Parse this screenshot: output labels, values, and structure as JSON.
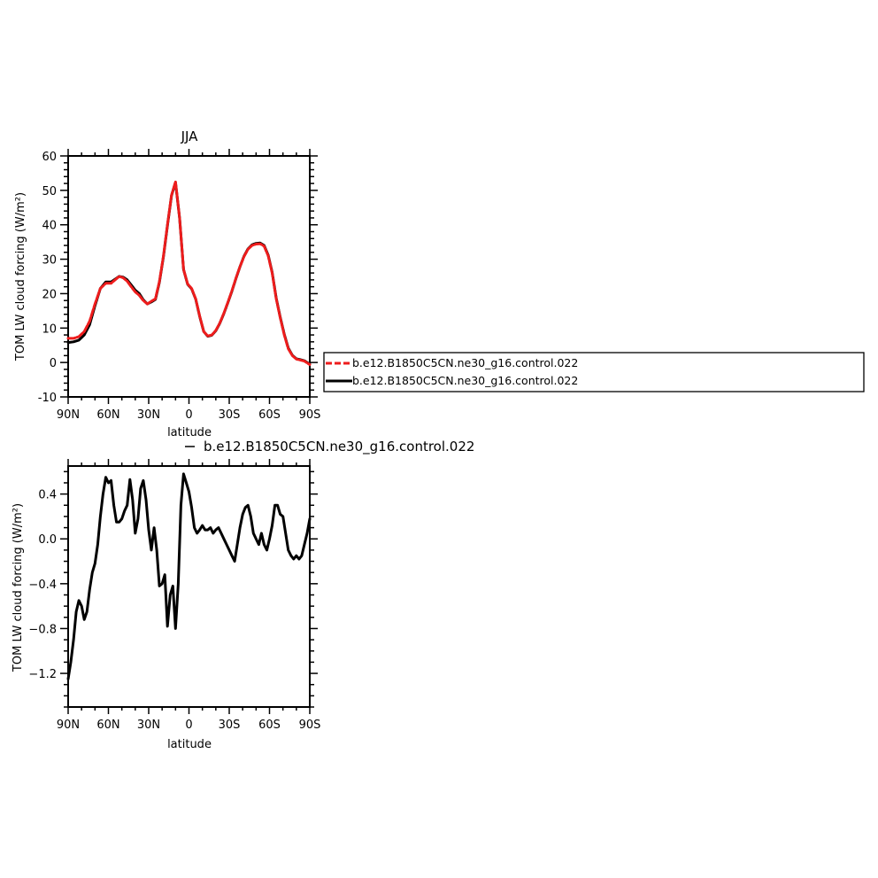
{
  "chart_data": [
    {
      "type": "line",
      "title": "JJA",
      "xlabel": "latitude",
      "ylabel": "TOM LW cloud forcing (W/m²)",
      "xlim": [
        90,
        -90
      ],
      "ylim": [
        -10,
        60
      ],
      "yticks": [
        -10,
        0,
        10,
        20,
        30,
        40,
        50,
        60
      ],
      "xticks": [
        {
          "value": 90,
          "label": "90N"
        },
        {
          "value": 60,
          "label": "60N"
        },
        {
          "value": 30,
          "label": "30N"
        },
        {
          "value": 0,
          "label": "0"
        },
        {
          "value": -30,
          "label": "30S"
        },
        {
          "value": -60,
          "label": "60S"
        },
        {
          "value": -90,
          "label": "90S"
        }
      ],
      "legend_position": "right",
      "series": [
        {
          "name": "b.e12.B1850C5CN.ne30_g16.control.022",
          "color": "#ee1c1c",
          "dash": "dashed",
          "x": [
            90,
            86,
            82,
            78,
            74,
            70,
            66,
            62,
            58,
            55,
            52,
            49,
            46,
            43,
            40,
            37,
            34,
            31,
            28,
            25,
            22,
            19,
            16,
            13,
            10,
            7,
            4,
            1,
            -2,
            -5,
            -8,
            -11,
            -14,
            -17,
            -20,
            -23,
            -26,
            -29,
            -32,
            -35,
            -38,
            -41,
            -44,
            -47,
            -50,
            -53,
            -56,
            -59,
            -62,
            -65,
            -68,
            -71,
            -74,
            -77,
            -80,
            -83,
            -86,
            -90
          ],
          "y": [
            7,
            7,
            7.5,
            9,
            12,
            17,
            21.5,
            23,
            23,
            24,
            25,
            24.6,
            23.6,
            22,
            20.5,
            19.5,
            18,
            17,
            17.8,
            18.5,
            23.5,
            31,
            40,
            48.6,
            52.5,
            42,
            27,
            22.8,
            21.5,
            18.5,
            13.5,
            9,
            7.7,
            8,
            9.3,
            11.5,
            14.3,
            17.5,
            20.8,
            24.5,
            27.8,
            30.8,
            32.9,
            34,
            34.4,
            34.5,
            33.8,
            31,
            26,
            18.5,
            13,
            8,
            4,
            2,
            1,
            0.7,
            0.4,
            -0.6
          ]
        },
        {
          "name": "b.e12.B1850C5CN.ne30_g16.control.022",
          "color": "#000000",
          "dash": "solid",
          "x": [
            90,
            86,
            82,
            78,
            74,
            70,
            66,
            62,
            58,
            55,
            52,
            49,
            46,
            43,
            40,
            37,
            34,
            31,
            28,
            25,
            22,
            19,
            16,
            13,
            10,
            7,
            4,
            1,
            -2,
            -5,
            -8,
            -11,
            -14,
            -17,
            -20,
            -23,
            -26,
            -29,
            -32,
            -35,
            -38,
            -41,
            -44,
            -47,
            -50,
            -53,
            -56,
            -59,
            -62,
            -65,
            -68,
            -71,
            -74,
            -77,
            -80,
            -83,
            -86,
            -90
          ],
          "y": [
            5.8,
            6,
            6.5,
            8,
            11,
            16.5,
            21.5,
            23.4,
            23.4,
            24.2,
            25,
            24.8,
            24,
            22.5,
            21,
            20,
            18.2,
            17,
            17.6,
            18.3,
            23.3,
            30.8,
            39.8,
            48.5,
            52.3,
            42,
            27,
            22.7,
            21.4,
            18.4,
            13.4,
            9,
            7.6,
            7.9,
            9.2,
            11.4,
            14.2,
            17.4,
            20.7,
            24.4,
            27.8,
            30.9,
            33,
            34.2,
            34.6,
            34.7,
            34,
            31.2,
            26.2,
            18.7,
            13.2,
            8.2,
            4.2,
            2.1,
            1.1,
            0.8,
            0.5,
            -0.5
          ]
        }
      ]
    },
    {
      "type": "line",
      "title": "",
      "subtitle": "b.e12.B1850C5CN.ne30_g16.control.022",
      "xlabel": "latitude",
      "ylabel": "TOM LW cloud forcing (W/m²)",
      "xlim": [
        90,
        -90
      ],
      "ylim": [
        -1.5,
        0.65
      ],
      "yticks": [
        {
          "value": -1.2,
          "label": "−1.2"
        },
        {
          "value": -0.8,
          "label": "−0.8"
        },
        {
          "value": -0.4,
          "label": "−0.4"
        },
        {
          "value": 0.0,
          "label": "0.0"
        },
        {
          "value": 0.4,
          "label": "0.4"
        }
      ],
      "xticks": [
        {
          "value": 90,
          "label": "90N"
        },
        {
          "value": 60,
          "label": "60N"
        },
        {
          "value": 30,
          "label": "30N"
        },
        {
          "value": 0,
          "label": "0"
        },
        {
          "value": -30,
          "label": "30S"
        },
        {
          "value": -60,
          "label": "60S"
        },
        {
          "value": -90,
          "label": "90S"
        }
      ],
      "series": [
        {
          "name": "b.e12.B1850C5CN.ne30_g16.control.022",
          "color": "#000000",
          "dash": "solid",
          "x": [
            90,
            88,
            86,
            84,
            82,
            80,
            78,
            76,
            74,
            72,
            70,
            68,
            66,
            64,
            62,
            60,
            58,
            56,
            54,
            52,
            50,
            48,
            46,
            44,
            42,
            40,
            38,
            36,
            34,
            32,
            30,
            28,
            26,
            24,
            22,
            20,
            18,
            16,
            14,
            12,
            10,
            8,
            6,
            4,
            2,
            0,
            -2,
            -4,
            -6,
            -8,
            -10,
            -12,
            -14,
            -16,
            -18,
            -20,
            -22,
            -24,
            -26,
            -28,
            -30,
            -32,
            -34,
            -36,
            -38,
            -40,
            -42,
            -44,
            -46,
            -48,
            -50,
            -52,
            -54,
            -56,
            -58,
            -60,
            -62,
            -64,
            -66,
            -68,
            -70,
            -72,
            -74,
            -76,
            -78,
            -80,
            -82,
            -84,
            -86,
            -88,
            -90
          ],
          "y": [
            -1.25,
            -1.1,
            -0.9,
            -0.65,
            -0.55,
            -0.6,
            -0.72,
            -0.65,
            -0.45,
            -0.3,
            -0.22,
            -0.05,
            0.2,
            0.4,
            0.55,
            0.5,
            0.52,
            0.3,
            0.15,
            0.15,
            0.18,
            0.25,
            0.3,
            0.53,
            0.35,
            0.05,
            0.18,
            0.45,
            0.52,
            0.35,
            0.08,
            -0.1,
            0.1,
            -0.1,
            -0.42,
            -0.4,
            -0.32,
            -0.78,
            -0.5,
            -0.42,
            -0.8,
            -0.4,
            0.3,
            0.58,
            0.5,
            0.42,
            0.28,
            0.1,
            0.05,
            0.08,
            0.12,
            0.08,
            0.08,
            0.1,
            0.05,
            0.08,
            0.1,
            0.05,
            0.0,
            -0.05,
            -0.1,
            -0.15,
            -0.2,
            -0.05,
            0.1,
            0.22,
            0.28,
            0.3,
            0.2,
            0.05,
            0.0,
            -0.05,
            0.05,
            -0.05,
            -0.1,
            0.0,
            0.12,
            0.3,
            0.3,
            0.22,
            0.2,
            0.05,
            -0.1,
            -0.15,
            -0.18,
            -0.15,
            -0.18,
            -0.15,
            -0.05,
            0.05,
            0.18
          ]
        }
      ]
    }
  ]
}
